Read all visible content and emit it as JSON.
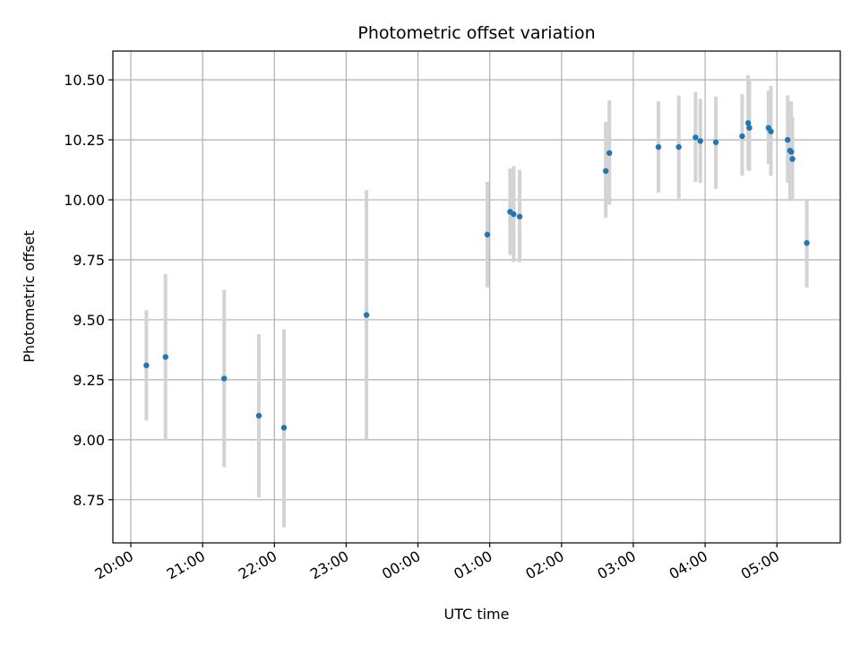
{
  "chart_data": {
    "type": "scatter",
    "title": "Photometric offset variation",
    "xlabel": "UTC time",
    "ylabel": "Photometric offset",
    "xlim": [
      "2000-01-01T19:45:00",
      "2000-01-02T05:53:00"
    ],
    "ylim": [
      8.57,
      10.62
    ],
    "grid": true,
    "x_ticks": [
      {
        "time": "2000-01-01T20:00:00",
        "label": "20:00"
      },
      {
        "time": "2000-01-01T21:00:00",
        "label": "21:00"
      },
      {
        "time": "2000-01-01T22:00:00",
        "label": "22:00"
      },
      {
        "time": "2000-01-01T23:00:00",
        "label": "23:00"
      },
      {
        "time": "2000-01-02T00:00:00",
        "label": "00:00"
      },
      {
        "time": "2000-01-02T01:00:00",
        "label": "01:00"
      },
      {
        "time": "2000-01-02T02:00:00",
        "label": "02:00"
      },
      {
        "time": "2000-01-02T03:00:00",
        "label": "03:00"
      },
      {
        "time": "2000-01-02T04:00:00",
        "label": "04:00"
      },
      {
        "time": "2000-01-02T05:00:00",
        "label": "05:00"
      }
    ],
    "y_ticks": [
      {
        "value": 8.75,
        "label": "8.75"
      },
      {
        "value": 9.0,
        "label": "9.00"
      },
      {
        "value": 9.25,
        "label": "9.25"
      },
      {
        "value": 9.5,
        "label": "9.50"
      },
      {
        "value": 9.75,
        "label": "9.75"
      },
      {
        "value": 10.0,
        "label": "10.00"
      },
      {
        "value": 10.25,
        "label": "10.25"
      },
      {
        "value": 10.5,
        "label": "10.50"
      }
    ],
    "colors": {
      "point": "#1f77b4",
      "errorbar": "#d3d3d3",
      "grid": "#b0b0b0"
    },
    "points": [
      {
        "time": "2000-01-01T20:13:00",
        "y": 9.31,
        "y_low": 9.08,
        "y_high": 9.54
      },
      {
        "time": "2000-01-01T20:29:00",
        "y": 9.345,
        "y_low": 9.0,
        "y_high": 9.69
      },
      {
        "time": "2000-01-01T21:18:00",
        "y": 9.255,
        "y_low": 8.885,
        "y_high": 9.625
      },
      {
        "time": "2000-01-01T21:47:00",
        "y": 9.1,
        "y_low": 8.76,
        "y_high": 9.44
      },
      {
        "time": "2000-01-01T22:08:00",
        "y": 9.05,
        "y_low": 8.635,
        "y_high": 9.46
      },
      {
        "time": "2000-01-01T23:17:00",
        "y": 9.52,
        "y_low": 9.0,
        "y_high": 10.04
      },
      {
        "time": "2000-01-02T00:58:00",
        "y": 9.855,
        "y_low": 9.635,
        "y_high": 10.075
      },
      {
        "time": "2000-01-02T01:17:00",
        "y": 9.95,
        "y_low": 9.77,
        "y_high": 10.13
      },
      {
        "time": "2000-01-02T01:20:00",
        "y": 9.94,
        "y_low": 9.74,
        "y_high": 10.14
      },
      {
        "time": "2000-01-02T01:25:00",
        "y": 9.93,
        "y_low": 9.74,
        "y_high": 10.125
      },
      {
        "time": "2000-01-02T02:37:00",
        "y": 10.12,
        "y_low": 9.925,
        "y_high": 10.325
      },
      {
        "time": "2000-01-02T02:40:00",
        "y": 10.195,
        "y_low": 9.98,
        "y_high": 10.415
      },
      {
        "time": "2000-01-02T03:21:00",
        "y": 10.22,
        "y_low": 10.03,
        "y_high": 10.41
      },
      {
        "time": "2000-01-02T03:38:00",
        "y": 10.22,
        "y_low": 10.005,
        "y_high": 10.435
      },
      {
        "time": "2000-01-02T03:52:00",
        "y": 10.26,
        "y_low": 10.075,
        "y_high": 10.45
      },
      {
        "time": "2000-01-02T03:56:00",
        "y": 10.245,
        "y_low": 10.07,
        "y_high": 10.42
      },
      {
        "time": "2000-01-02T04:09:00",
        "y": 10.24,
        "y_low": 10.045,
        "y_high": 10.43
      },
      {
        "time": "2000-01-02T04:31:00",
        "y": 10.265,
        "y_low": 10.1,
        "y_high": 10.44
      },
      {
        "time": "2000-01-02T04:36:00",
        "y": 10.32,
        "y_low": 10.125,
        "y_high": 10.52
      },
      {
        "time": "2000-01-02T04:37:00",
        "y": 10.3,
        "y_low": 10.12,
        "y_high": 10.5
      },
      {
        "time": "2000-01-02T04:53:00",
        "y": 10.3,
        "y_low": 10.15,
        "y_high": 10.455
      },
      {
        "time": "2000-01-02T04:55:00",
        "y": 10.285,
        "y_low": 10.1,
        "y_high": 10.475
      },
      {
        "time": "2000-01-02T05:09:00",
        "y": 10.25,
        "y_low": 10.07,
        "y_high": 10.435
      },
      {
        "time": "2000-01-02T05:11:00",
        "y": 10.205,
        "y_low": 10.0,
        "y_high": 10.41
      },
      {
        "time": "2000-01-02T05:12:00",
        "y": 10.2,
        "y_low": 9.995,
        "y_high": 10.41
      },
      {
        "time": "2000-01-02T05:13:00",
        "y": 10.17,
        "y_low": 10.0,
        "y_high": 10.345
      },
      {
        "time": "2000-01-02T05:25:00",
        "y": 9.82,
        "y_low": 9.635,
        "y_high": 10.0
      }
    ]
  }
}
